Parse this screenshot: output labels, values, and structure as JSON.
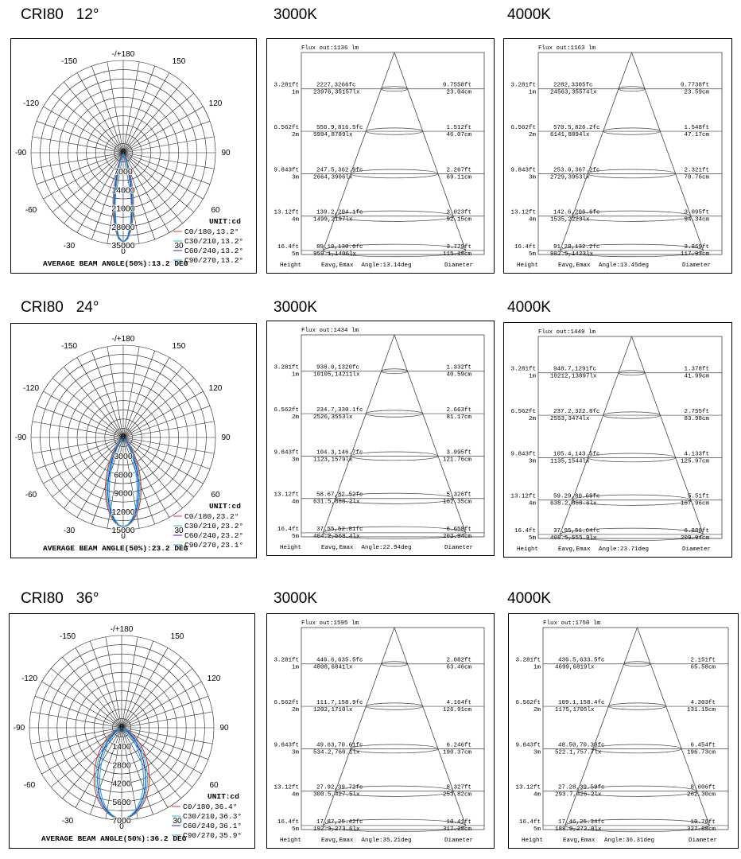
{
  "rows": [
    {
      "title": "CRI80   12°",
      "polar": {
        "angle_labels": {
          "top": "-/+180",
          "l150": "-150",
          "r150": "150",
          "l120": "-120",
          "r120": "120",
          "l90": "-90",
          "r90": "90",
          "l60": "-60",
          "r60": "60",
          "l30": "-30",
          "r30": "30",
          "bottom": "0"
        },
        "radial_labels": [
          "0",
          "7000",
          "14000",
          "21000",
          "28000",
          "35000"
        ],
        "r_max": 35000,
        "unit": "UNIT:cd",
        "legend": [
          "C0/180,13.2°",
          "C30/210,13.2°",
          "C60/240,13.2°",
          "C90/270,13.2°"
        ],
        "beam_text": "AVERAGE BEAM ANGLE(50%):13.2 DEG",
        "peak": 34000,
        "half_angle_deg": 6.6
      },
      "cones": [
        {
          "header": "3000K",
          "flux": "Flux out:1136 lm",
          "angle": "Angle:13.14deg",
          "levels": [
            {
              "ft": "3.281ft",
              "m": "1m",
              "fc": "2227,3266fc",
              "lx": "23976,35157lx",
              "dft": "0.7558ft",
              "dcm": "23.04cm"
            },
            {
              "ft": "6.562ft",
              "m": "2m",
              "fc": "556.9,816.5fc",
              "lx": "5994,8789lx",
              "dft": "1.512ft",
              "dcm": "46.07cm"
            },
            {
              "ft": "9.843ft",
              "m": "3m",
              "fc": "247.5,362.9fc",
              "lx": "2664,3906lx",
              "dft": "2.267ft",
              "dcm": "69.11cm"
            },
            {
              "ft": "13.12ft",
              "m": "4m",
              "fc": "139.2,204.1fc",
              "lx": "1499,2197lx",
              "dft": "3.023ft",
              "dcm": "92.15cm"
            },
            {
              "ft": "16.4ft",
              "m": "5m",
              "fc": "89.10,130.6fc",
              "lx": "959.1,1406lx",
              "dft": "3.779ft",
              "dcm": "115.18cm"
            }
          ]
        },
        {
          "header": "4000K",
          "flux": "Flux out:1163 lm",
          "angle": "Angle:13.45deg",
          "levels": [
            {
              "ft": "3.281ft",
              "m": "1m",
              "fc": "2282,3305fc",
              "lx": "24563,35574lx",
              "dft": "0.7738ft",
              "dcm": "23.59cm"
            },
            {
              "ft": "6.562ft",
              "m": "2m",
              "fc": "570.5,826.2fc",
              "lx": "6141,8894lx",
              "dft": "1.548ft",
              "dcm": "47.17cm"
            },
            {
              "ft": "9.843ft",
              "m": "3m",
              "fc": "253.6,367.2fc",
              "lx": "2729,3953lx",
              "dft": "2.321ft",
              "dcm": "70.76cm"
            },
            {
              "ft": "13.12ft",
              "m": "4m",
              "fc": "142.6,206.6fc",
              "lx": "1535,2223lx",
              "dft": "3.095ft",
              "dcm": "94.34cm"
            },
            {
              "ft": "16.4ft",
              "m": "5m",
              "fc": "91.28,132.2fc",
              "lx": "982.5,1423lx",
              "dft": "3.869ft",
              "dcm": "117.93cm"
            }
          ]
        }
      ]
    },
    {
      "title": "CRI80   24°",
      "polar": {
        "angle_labels": {
          "top": "-/+180",
          "l150": "-150",
          "r150": "150",
          "l120": "-120",
          "r120": "120",
          "l90": "-90",
          "r90": "90",
          "l60": "-60",
          "r60": "60",
          "l30": "-30",
          "r30": "30",
          "bottom": "0"
        },
        "radial_labels": [
          "0",
          "3000",
          "6000",
          "9000",
          "12000",
          "15000"
        ],
        "r_max": 15000,
        "unit": "UNIT:cd",
        "legend": [
          "C0/180,23.2°",
          "C30/210,23.2°",
          "C60/240,23.2°",
          "C90/270,23.1°"
        ],
        "beam_text": "AVERAGE BEAM ANGLE(50%):23.2 DEG",
        "peak": 14500,
        "half_angle_deg": 11.6
      },
      "cones": [
        {
          "header": "3000K",
          "flux": "Flux out:1434 lm",
          "angle": "Angle:22.94deg",
          "levels": [
            {
              "ft": "3.281ft",
              "m": "1m",
              "fc": "938.0,1320fc",
              "lx": "10105,14211lx",
              "dft": "1.332ft",
              "dcm": "40.59cm"
            },
            {
              "ft": "6.562ft",
              "m": "2m",
              "fc": "234.7,330.1fc",
              "lx": "2526,3553lx",
              "dft": "2.663ft",
              "dcm": "81.17cm"
            },
            {
              "ft": "9.843ft",
              "m": "3m",
              "fc": "104.3,146.7fc",
              "lx": "1123,1579lx",
              "dft": "3.995ft",
              "dcm": "121.76cm"
            },
            {
              "ft": "13.12ft",
              "m": "4m",
              "fc": "58.67,82.52fc",
              "lx": "631.5,888.2lx",
              "dft": "5.326ft",
              "dcm": "162.35cm"
            },
            {
              "ft": "16.4ft",
              "m": "5m",
              "fc": "37.55,52.81fc",
              "lx": "404.2,568.4lx",
              "dft": "6.658ft",
              "dcm": "202.94cm"
            }
          ]
        },
        {
          "header": "4000K",
          "flux": "Flux out:1449 lm",
          "angle": "Angle:23.71deg",
          "levels": [
            {
              "ft": "3.281ft",
              "m": "1m",
              "fc": "948.7,1291fc",
              "lx": "10212,13897lx",
              "dft": "1.378ft",
              "dcm": "41.99cm"
            },
            {
              "ft": "6.562ft",
              "m": "2m",
              "fc": "237.2,322.8fc",
              "lx": "2553,3474lx",
              "dft": "2.755ft",
              "dcm": "83.98cm"
            },
            {
              "ft": "9.843ft",
              "m": "3m",
              "fc": "105.4,143.5fc",
              "lx": "1135,1544lx",
              "dft": "4.133ft",
              "dcm": "125.97cm"
            },
            {
              "ft": "13.12ft",
              "m": "4m",
              "fc": "59.29,80.69fc",
              "lx": "638.2,868.6lx",
              "dft": "5.51ft",
              "dcm": "167.96cm"
            },
            {
              "ft": "16.4ft",
              "m": "5m",
              "fc": "37.95,51.64fc",
              "lx": "408.5,555.9lx",
              "dft": "6.888ft",
              "dcm": "209.94cm"
            }
          ]
        }
      ]
    },
    {
      "title": "CRI80   36°",
      "polar": {
        "angle_labels": {
          "top": "-/+180",
          "l150": "-150",
          "r150": "150",
          "l120": "-120",
          "r120": "120",
          "l90": "-90",
          "r90": "90",
          "l60": "-60",
          "r60": "60",
          "l30": "-30",
          "r30": "30",
          "bottom": "0"
        },
        "radial_labels": [
          "0",
          "1400",
          "2800",
          "4200",
          "5600",
          "7000"
        ],
        "r_max": 7000,
        "unit": "UNIT:cd",
        "legend": [
          "C0/180,36.4°",
          "C30/210,36.3°",
          "C60/240,36.1°",
          "C90/270,35.9°"
        ],
        "beam_text": "AVERAGE BEAM ANGLE(50%):36.2 DEG",
        "peak": 6900,
        "half_angle_deg": 18.1
      },
      "cones": [
        {
          "header": "3000K",
          "flux": "Flux out:1595 lm",
          "angle": "Angle:35.21deg",
          "levels": [
            {
              "ft": "3.281ft",
              "m": "1m",
              "fc": "446.6,635.5fc",
              "lx": "4808,6841lx",
              "dft": "2.082ft",
              "dcm": "63.46cm"
            },
            {
              "ft": "6.562ft",
              "m": "2m",
              "fc": "111.7,158.9fc",
              "lx": "1202,1710lx",
              "dft": "4.164ft",
              "dcm": "126.91cm"
            },
            {
              "ft": "9.843ft",
              "m": "3m",
              "fc": "49.63,70.61fc",
              "lx": "534.2,760.1lx",
              "dft": "6.246ft",
              "dcm": "190.37cm"
            },
            {
              "ft": "13.12ft",
              "m": "4m",
              "fc": "27.92,39.72fc",
              "lx": "300.5,427.5lx",
              "dft": "8.327ft",
              "dcm": "253.82cm"
            },
            {
              "ft": "16.4ft",
              "m": "5m",
              "fc": "17.87,25.42fc",
              "lx": "192.3,273.6lx",
              "dft": "10.41ft",
              "dcm": "317.28cm"
            }
          ]
        },
        {
          "header": "4000K",
          "flux": "Flux out:1750 lm",
          "angle": "Angle:36.31deg",
          "levels": [
            {
              "ft": "3.281ft",
              "m": "1m",
              "fc": "436.5,633.5fc",
              "lx": "4699,6819lx",
              "dft": "2.151ft",
              "dcm": "65.58cm"
            },
            {
              "ft": "6.562ft",
              "m": "2m",
              "fc": "109.1,158.4fc",
              "lx": "1175,1705lx",
              "dft": "4.303ft",
              "dcm": "131.15cm"
            },
            {
              "ft": "9.843ft",
              "m": "3m",
              "fc": "48.50,70.39fc",
              "lx": "522.1,757.7lx",
              "dft": "6.454ft",
              "dcm": "196.73cm"
            },
            {
              "ft": "13.12ft",
              "m": "4m",
              "fc": "27.28,39.59fc",
              "lx": "293.7,426.2lx",
              "dft": "8.606ft",
              "dcm": "262.30cm"
            },
            {
              "ft": "16.4ft",
              "m": "5m",
              "fc": "17.46,25.34fc",
              "lx": "188.0,272.8lx",
              "dft": "10.76ft",
              "dcm": "327.88cm"
            }
          ]
        }
      ]
    }
  ],
  "cone_footer": {
    "height": "Height",
    "eavg": "Eavg,Emax",
    "diameter": "Diameter"
  },
  "series_colors": [
    "#e8302a",
    "#19c8c8",
    "#2a2ad8",
    "#1aa4d8"
  ],
  "chart_data": [
    {
      "type": "polar",
      "title": "CRI80 12°",
      "r_max": 35000,
      "peak_cd": 34000,
      "series": [
        {
          "name": "C0/180,13.2°",
          "beam": 13.2
        },
        {
          "name": "C30/210,13.2°",
          "beam": 13.2
        },
        {
          "name": "C60/240,13.2°",
          "beam": 13.2
        },
        {
          "name": "C90/270,13.2°",
          "beam": 13.2
        }
      ]
    },
    {
      "type": "polar",
      "title": "CRI80 24°",
      "r_max": 15000,
      "peak_cd": 14500,
      "series": [
        {
          "name": "C0/180,23.2°",
          "beam": 23.2
        },
        {
          "name": "C30/210,23.2°",
          "beam": 23.2
        },
        {
          "name": "C60/240,23.2°",
          "beam": 23.2
        },
        {
          "name": "C90/270,23.1°",
          "beam": 23.1
        }
      ]
    },
    {
      "type": "polar",
      "title": "CRI80 36°",
      "r_max": 7000,
      "peak_cd": 6900,
      "series": [
        {
          "name": "C0/180,36.4°",
          "beam": 36.4
        },
        {
          "name": "C30/210,36.3°",
          "beam": 36.3
        },
        {
          "name": "C60/240,36.1°",
          "beam": 36.1
        },
        {
          "name": "C90/270,35.9°",
          "beam": 35.9
        }
      ]
    }
  ]
}
